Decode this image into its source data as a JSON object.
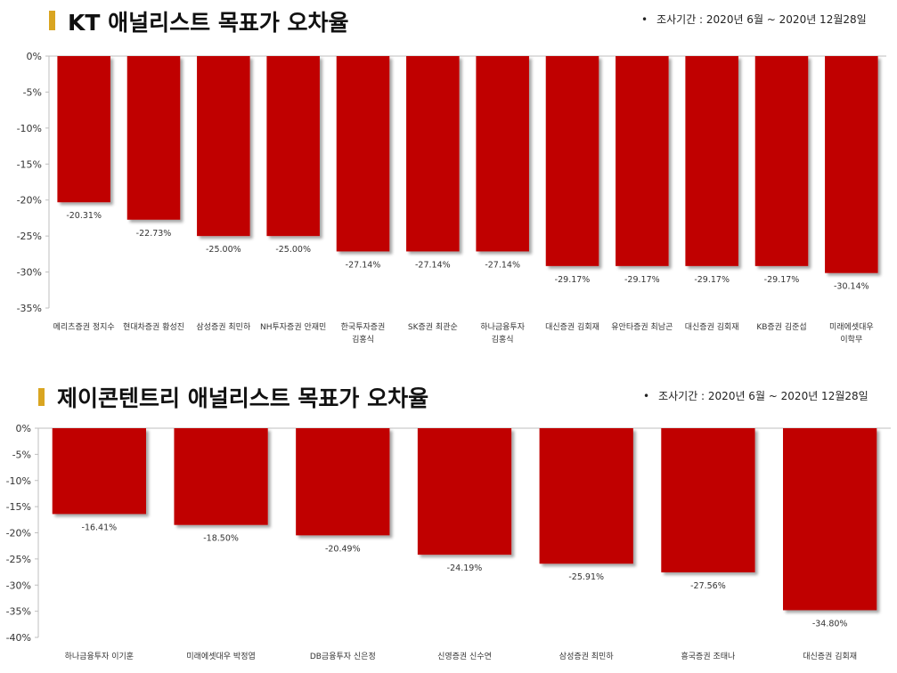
{
  "charts": [
    {
      "title": "KT 애널리스트 목표가 오차율",
      "note": "조사기간 : 2020년 6월 ~ 2020년 12월28일",
      "colors": {
        "bar": "#c00000",
        "accent": "#d9a521"
      }
    },
    {
      "title": "제이콘텐트리 애널리스트 목표가 오차율",
      "note": "조사기간 : 2020년 6월 ~ 2020년 12월28일",
      "colors": {
        "bar": "#c00000",
        "accent": "#d9a521"
      }
    }
  ],
  "chart_data": [
    {
      "type": "bar",
      "title": "KT 애널리스트 목표가 오차율",
      "categories": [
        [
          "메리츠증권 정지수"
        ],
        [
          "현대차증권 황성진"
        ],
        [
          "삼성증권 최민하"
        ],
        [
          "NH투자증권 안재민"
        ],
        [
          "한국투자증권",
          "김홍식"
        ],
        [
          "SK증권 최관순"
        ],
        [
          "하나금융투자",
          "김홍식"
        ],
        [
          "대신증권 김회재"
        ],
        [
          "유안타증권 최남곤"
        ],
        [
          "대신증권 김회재"
        ],
        [
          "KB증권 김준섭"
        ],
        [
          "미래에셋대우",
          "이학무"
        ]
      ],
      "values": [
        -20.31,
        -22.73,
        -25.0,
        -25.0,
        -27.14,
        -27.14,
        -27.14,
        -29.17,
        -29.17,
        -29.17,
        -29.17,
        -30.14
      ],
      "data_labels": [
        "-20.31%",
        "-22.73%",
        "-25.00%",
        "-25.00%",
        "-27.14%",
        "-27.14%",
        "-27.14%",
        "-29.17%",
        "-29.17%",
        "-29.17%",
        "-29.17%",
        "-30.14%"
      ],
      "y_ticks": [
        0,
        -5,
        -10,
        -15,
        -20,
        -25,
        -30,
        -35
      ],
      "y_tick_labels": [
        "0%",
        "-5%",
        "-10%",
        "-15%",
        "-20%",
        "-25%",
        "-30%",
        "-35%"
      ],
      "ylim": [
        -35,
        0
      ],
      "grid": false,
      "legend": "none"
    },
    {
      "type": "bar",
      "title": "제이콘텐트리 애널리스트 목표가 오차율",
      "categories": [
        [
          "하나금융투자 이기훈"
        ],
        [
          "미래에셋대우 박정엽"
        ],
        [
          "DB금융투자 신은정"
        ],
        [
          "신영증권 신수연"
        ],
        [
          "삼성증권 최민하"
        ],
        [
          "흥국증권 조태나"
        ],
        [
          "대신증권 김회재"
        ]
      ],
      "values": [
        -16.41,
        -18.5,
        -20.49,
        -24.19,
        -25.91,
        -27.56,
        -34.8
      ],
      "data_labels": [
        "-16.41%",
        "-18.50%",
        "-20.49%",
        "-24.19%",
        "-25.91%",
        "-27.56%",
        "-34.80%"
      ],
      "y_ticks": [
        0,
        -5,
        -10,
        -15,
        -20,
        -25,
        -30,
        -35,
        -40
      ],
      "y_tick_labels": [
        "0%",
        "-5%",
        "-10%",
        "-15%",
        "-20%",
        "-25%",
        "-30%",
        "-35%",
        "-40%"
      ],
      "ylim": [
        -40,
        0
      ],
      "grid": false,
      "legend": "none"
    }
  ]
}
